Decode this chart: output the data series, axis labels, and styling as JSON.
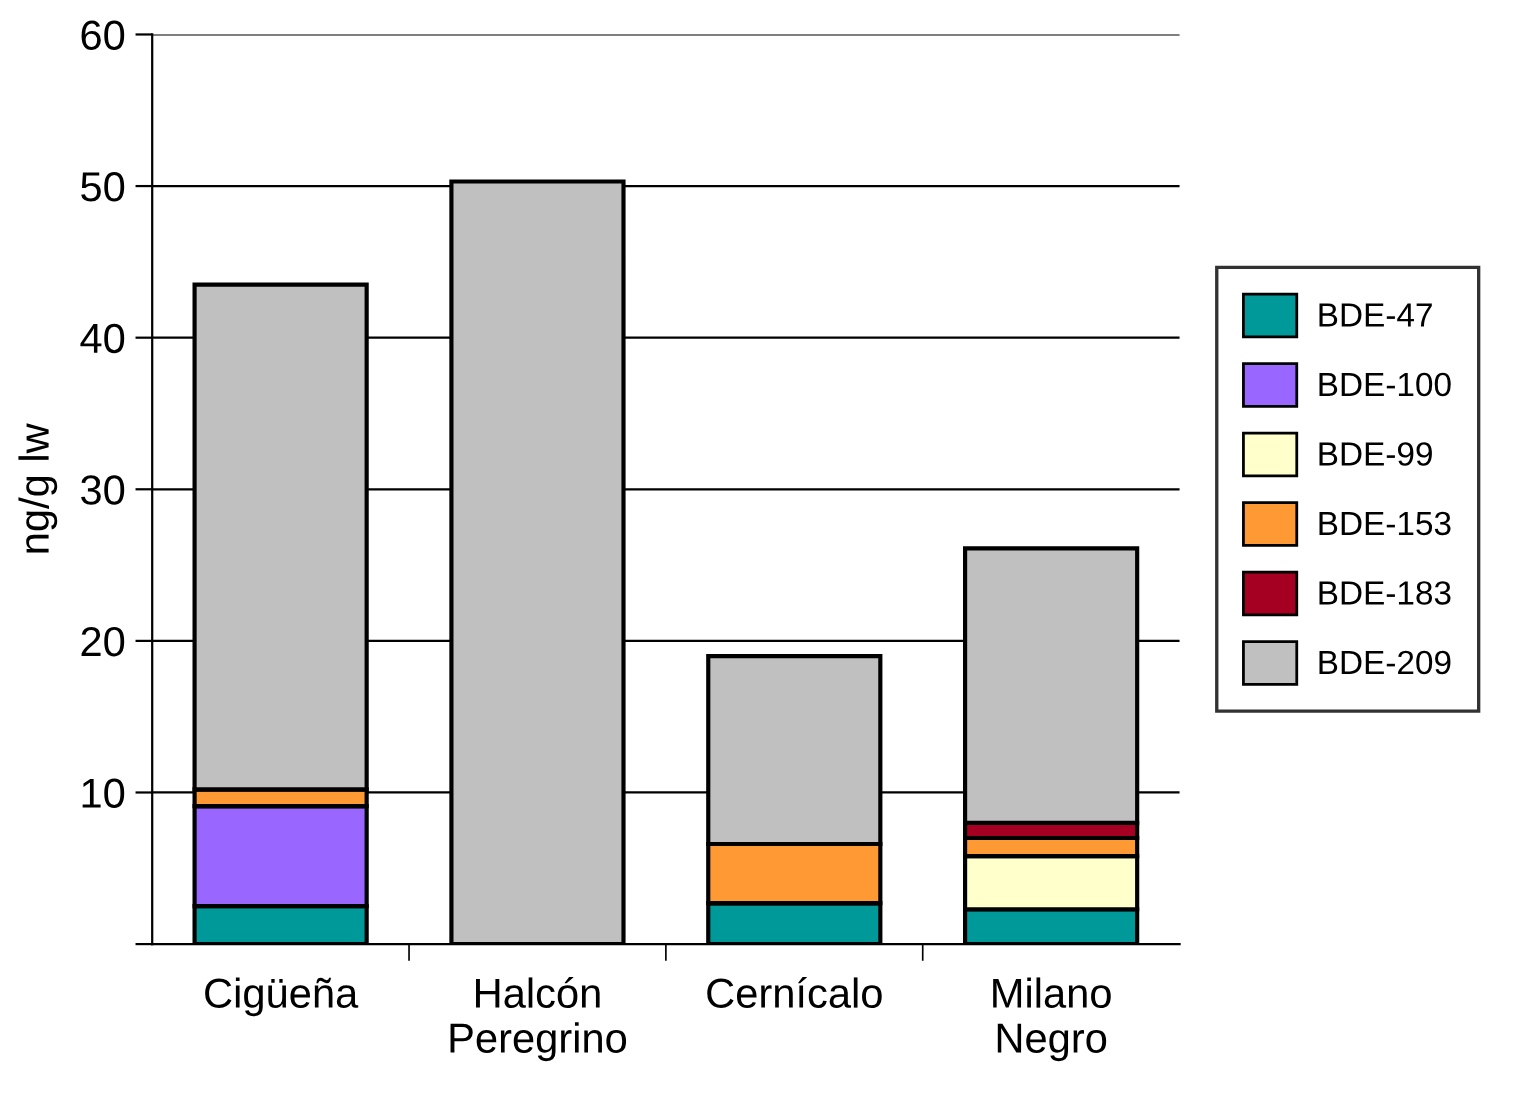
{
  "chart_data": {
    "type": "bar",
    "stacked": true,
    "ylabel": "ng/g lw",
    "categories": [
      "Cigüeña",
      "Halcón\nPeregrino",
      "Cernícalo",
      "Milano\nNegro"
    ],
    "series": [
      {
        "name": "BDE-47",
        "color": "#009999",
        "values": [
          2.5,
          0,
          2.7,
          2.3
        ]
      },
      {
        "name": "BDE-100",
        "color": "#9966ff",
        "values": [
          6.6,
          0,
          0,
          0
        ]
      },
      {
        "name": "BDE-99",
        "color": "#ffffcc",
        "values": [
          0,
          0,
          0,
          3.5
        ]
      },
      {
        "name": "BDE-153",
        "color": "#ff9933",
        "values": [
          1.1,
          0,
          3.9,
          1.2
        ]
      },
      {
        "name": "BDE-183",
        "color": "#a50021",
        "values": [
          0,
          0,
          0,
          1.0
        ]
      },
      {
        "name": "BDE-209",
        "color": "#c0c0c0",
        "values": [
          33.3,
          50.3,
          12.4,
          18.1
        ]
      }
    ],
    "ylim": [
      0,
      60
    ],
    "yticks": [
      {
        "value": 0,
        "label": null
      },
      10,
      20,
      30,
      40,
      50,
      60
    ],
    "grid": "y",
    "legend": "right"
  }
}
